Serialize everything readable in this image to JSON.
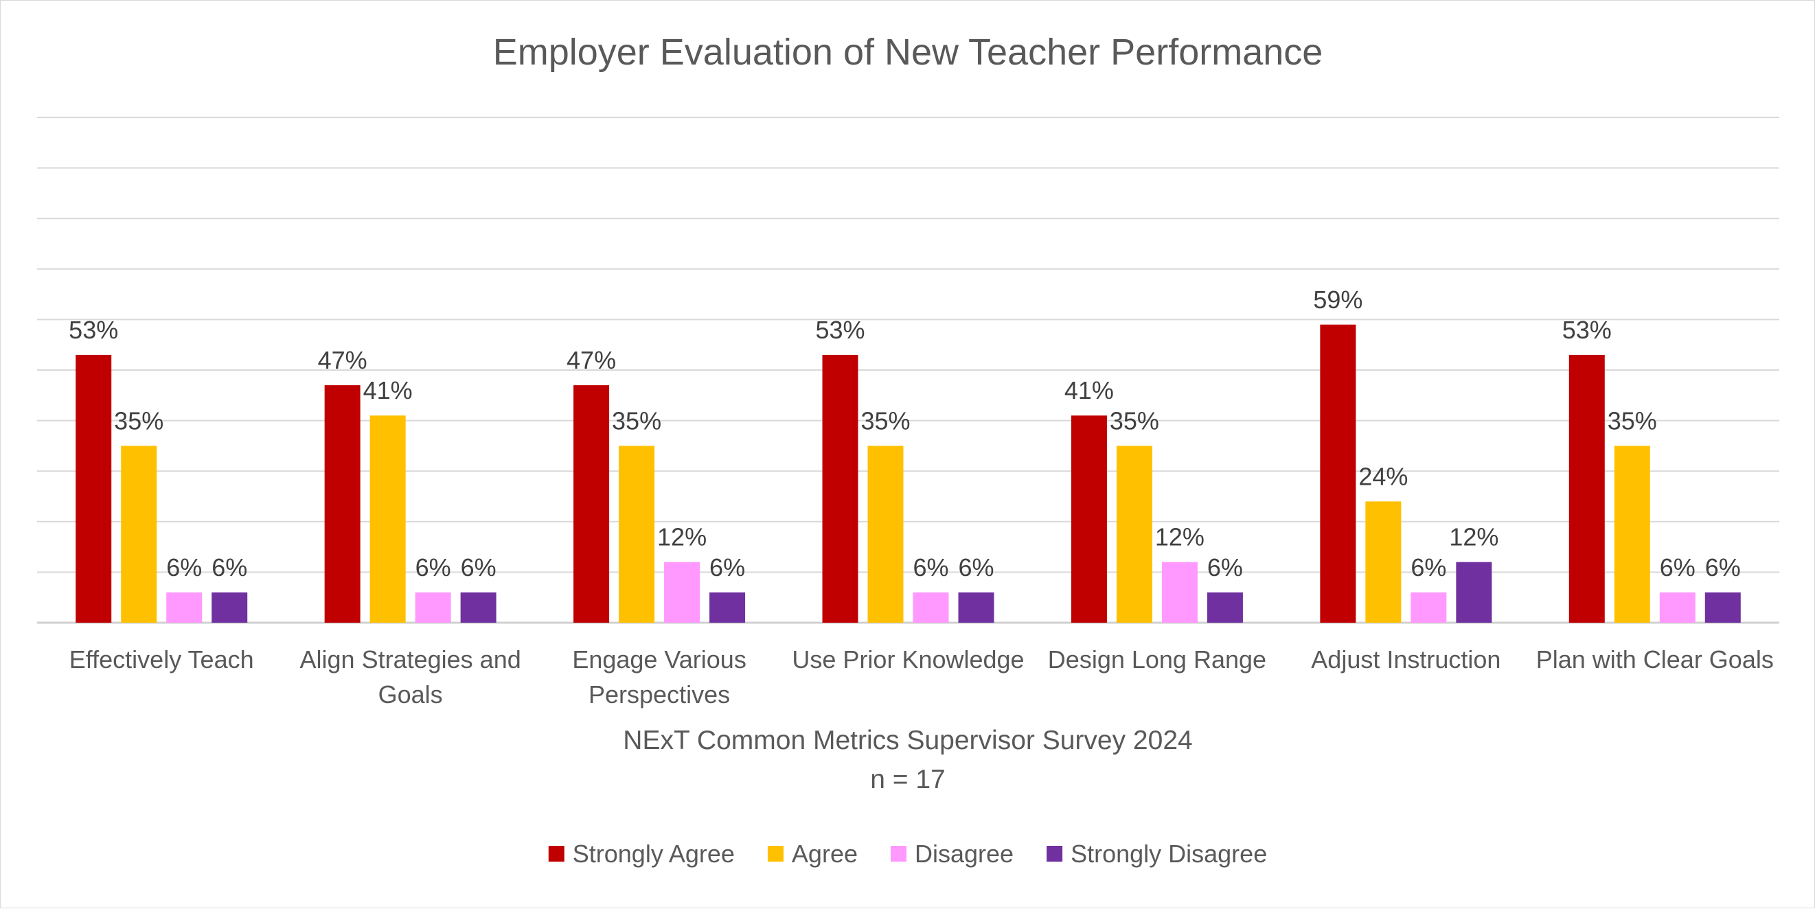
{
  "chart_data": {
    "type": "bar",
    "title": "Employer Evaluation of New Teacher Performance",
    "xlabel": [
      "NExT Common Metrics Supervisor Survey 2024",
      "n = 17"
    ],
    "ylabel": "",
    "ylim": [
      0,
      100
    ],
    "grid": true,
    "legend_position": "bottom",
    "categories": [
      [
        "Effectively Teach"
      ],
      [
        "Align Strategies and",
        "Goals"
      ],
      [
        "Engage Various",
        "Perspectives"
      ],
      [
        "Use Prior Knowledge"
      ],
      [
        "Design Long Range"
      ],
      [
        "Adjust Instruction"
      ],
      [
        "Plan with Clear Goals"
      ]
    ],
    "series": [
      {
        "name": "Strongly Agree",
        "color": "#c00000",
        "values": [
          53,
          47,
          47,
          53,
          41,
          59,
          53
        ]
      },
      {
        "name": "Agree",
        "color": "#ffc000",
        "values": [
          35,
          41,
          35,
          35,
          35,
          24,
          35
        ]
      },
      {
        "name": "Disagree",
        "color": "#ff99ff",
        "values": [
          6,
          6,
          12,
          6,
          12,
          6,
          6
        ]
      },
      {
        "name": "Strongly Disagree",
        "color": "#7030a0",
        "values": [
          6,
          6,
          6,
          6,
          6,
          12,
          6
        ]
      }
    ],
    "value_suffix": "%"
  }
}
